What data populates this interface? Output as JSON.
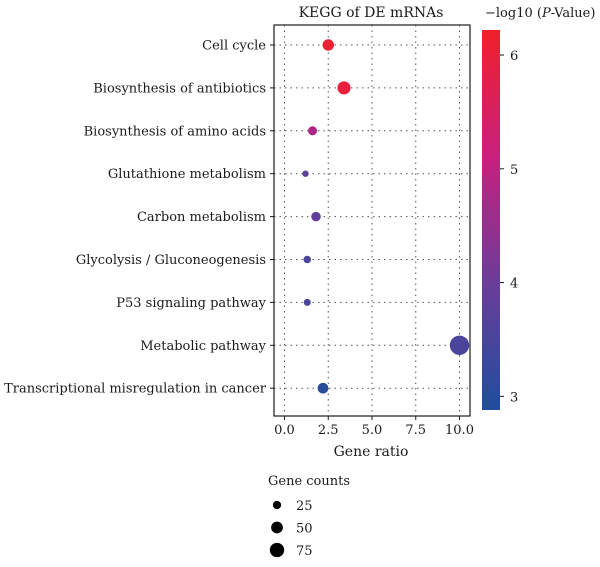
{
  "chart_data": {
    "type": "scatter",
    "title": "KEGG of DE mRNAs",
    "xlabel": "Gene ratio",
    "xlim": [
      -0.6,
      10.6
    ],
    "xticks": [
      0.0,
      2.5,
      5.0,
      7.5,
      10.0
    ],
    "xtick_labels": [
      "0.0",
      "2.5",
      "5.0",
      "7.5",
      "10.0"
    ],
    "grid": true,
    "categories": [
      "Cell cycle",
      "Biosynthesis of antibiotics",
      "Biosynthesis of amino acids",
      "Glutathione metabolism",
      "Carbon metabolism",
      "Glycolysis / Gluconeogenesis",
      "P53 signaling pathway",
      "Metabolic pathway",
      "Transcriptional misregulation in cancer"
    ],
    "points": [
      {
        "category": "Cell cycle",
        "gene_ratio": 2.5,
        "neg_log10_p": 6.1,
        "gene_count": 32
      },
      {
        "category": "Biosynthesis of antibiotics",
        "gene_ratio": 3.4,
        "neg_log10_p": 6.0,
        "gene_count": 42
      },
      {
        "category": "Biosynthesis of amino acids",
        "gene_ratio": 1.6,
        "neg_log10_p": 4.8,
        "gene_count": 20
      },
      {
        "category": "Glutathione metabolism",
        "gene_ratio": 1.2,
        "neg_log10_p": 3.8,
        "gene_count": 10
      },
      {
        "category": "Carbon metabolism",
        "gene_ratio": 1.8,
        "neg_log10_p": 3.9,
        "gene_count": 22
      },
      {
        "category": "Glycolysis / Gluconeogenesis",
        "gene_ratio": 1.3,
        "neg_log10_p": 3.5,
        "gene_count": 14
      },
      {
        "category": "P53 signaling pathway",
        "gene_ratio": 1.3,
        "neg_log10_p": 3.5,
        "gene_count": 12
      },
      {
        "category": "Metabolic pathway",
        "gene_ratio": 10.0,
        "neg_log10_p": 3.5,
        "gene_count": 92
      },
      {
        "category": "Transcriptional misregulation in cancer",
        "gene_ratio": 2.2,
        "neg_log10_p": 3.0,
        "gene_count": 28
      }
    ],
    "color_scale": {
      "title_prefix": "−log10 (",
      "title_italic": "P",
      "title_suffix": "-Value)",
      "range": [
        2.88,
        6.22
      ],
      "ticks": [
        3,
        4,
        5,
        6
      ],
      "tick_labels": [
        "3",
        "4",
        "5",
        "6"
      ],
      "colors": [
        "#1f4e9c",
        "#6a3d9a",
        "#c7207e",
        "#f0202a"
      ]
    },
    "size_legend": {
      "title": "Gene counts",
      "values": [
        25,
        50,
        75
      ],
      "labels": [
        "25",
        "50",
        "75"
      ]
    }
  }
}
